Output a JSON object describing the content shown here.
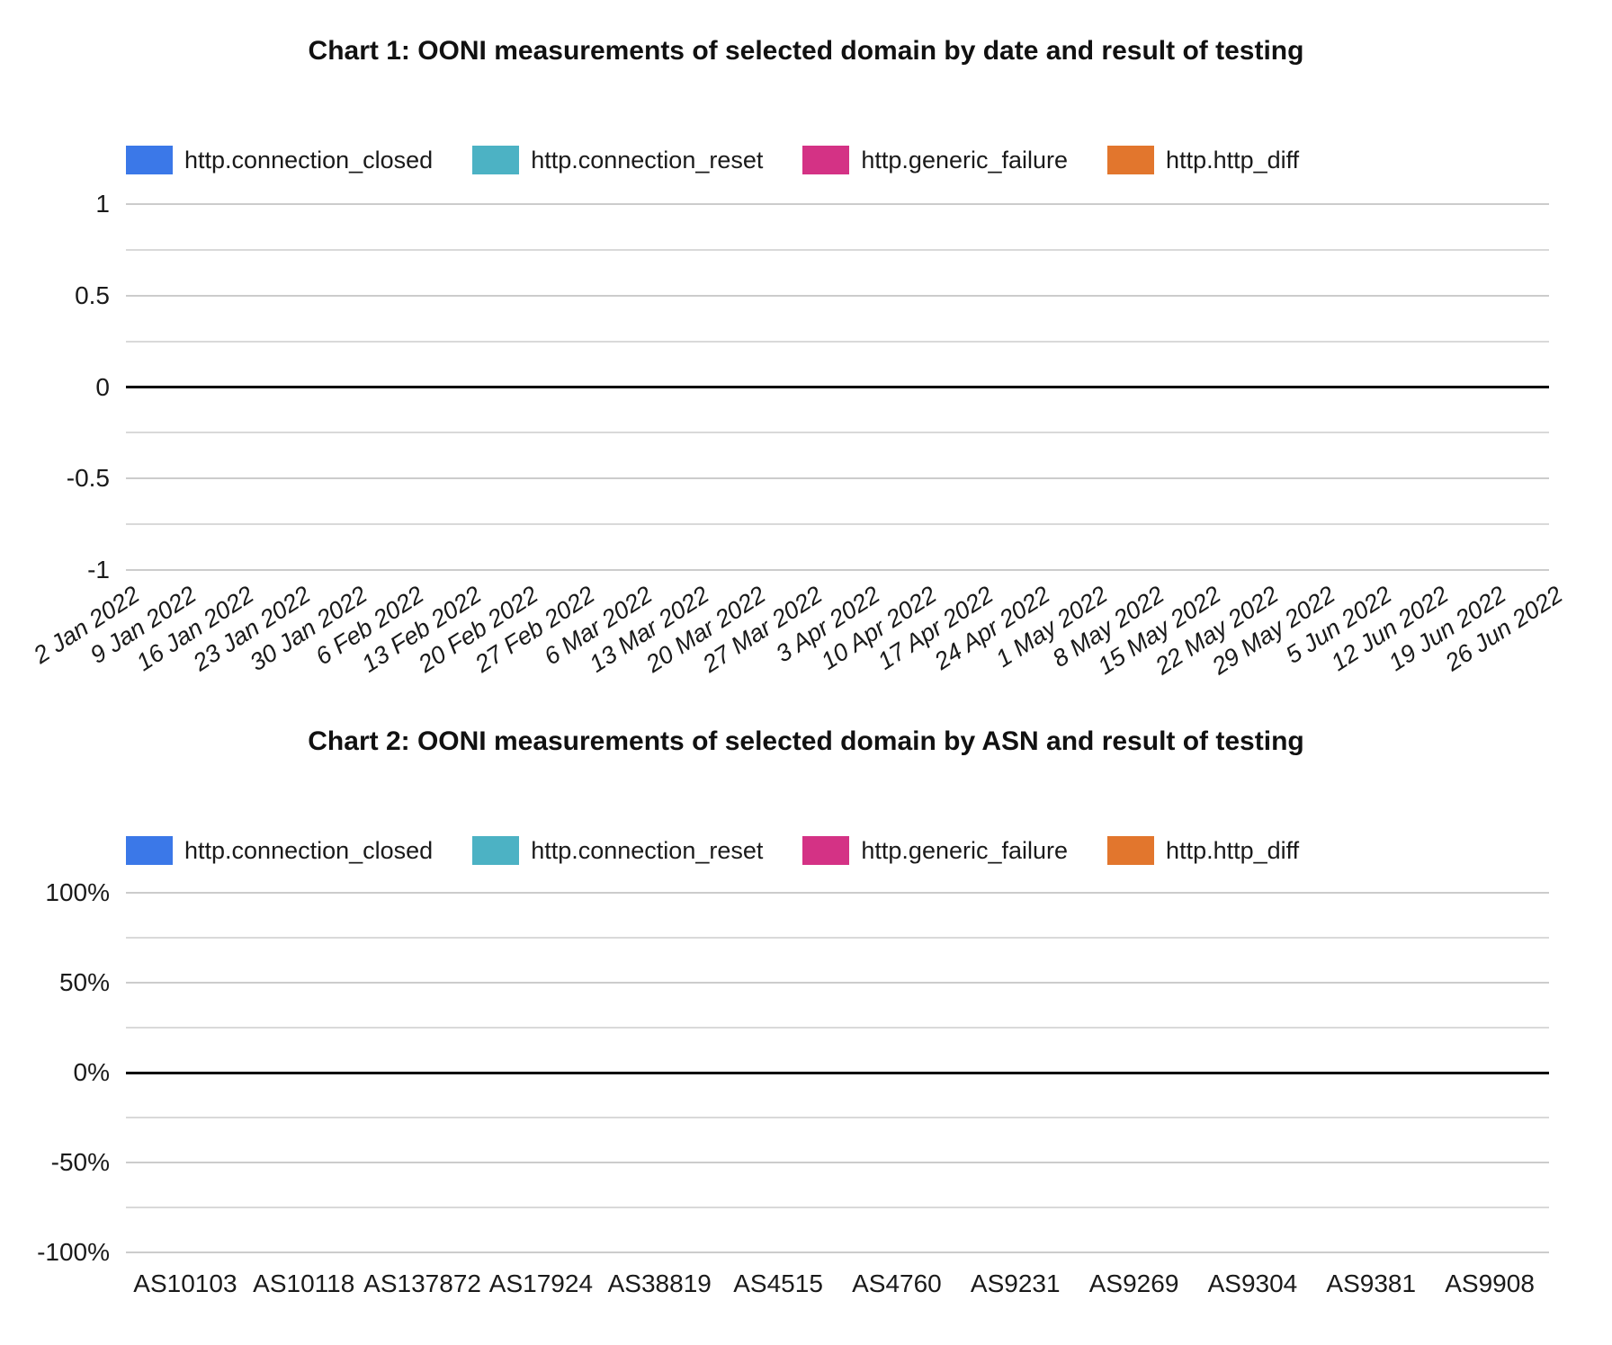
{
  "page": {
    "background": "#ffffff"
  },
  "colors": {
    "series": [
      "#3b78e8",
      "#4cb2c4",
      "#d43285",
      "#e2762d"
    ],
    "gridline": "#cccccc",
    "minor_gridline": "#d9d9d9",
    "zero_line": "#000000",
    "text": "#1a1a1a"
  },
  "charts": [
    {
      "title": "Chart 1: OONI measurements of selected domain by date and result of testing",
      "legend": [
        {
          "label": "http.connection_closed",
          "color": "#3b78e8"
        },
        {
          "label": "http.connection_reset",
          "color": "#4cb2c4"
        },
        {
          "label": "http.generic_failure",
          "color": "#d43285"
        },
        {
          "label": "http.http_diff",
          "color": "#e2762d"
        }
      ],
      "y_ticks": [
        "1",
        "0.5",
        "0",
        "-0.5",
        "-1"
      ],
      "x_labels": [
        "2 Jan 2022",
        "9 Jan 2022",
        "16 Jan 2022",
        "23 Jan 2022",
        "30 Jan 2022",
        "6 Feb 2022",
        "13 Feb 2022",
        "20 Feb 2022",
        "27 Feb 2022",
        "6 Mar 2022",
        "13 Mar 2022",
        "20 Mar 2022",
        "27 Mar 2022",
        "3 Apr 2022",
        "10 Apr 2022",
        "17 Apr 2022",
        "24 Apr 2022",
        "1 May 2022",
        "8 May 2022",
        "15 May 2022",
        "22 May 2022",
        "29 May 2022",
        "5 Jun 2022",
        "12 Jun 2022",
        "19 Jun 2022",
        "26 Jun 2022"
      ]
    },
    {
      "title": "Chart 2: OONI measurements of selected domain by ASN and result of testing",
      "legend": [
        {
          "label": "http.connection_closed",
          "color": "#3b78e8"
        },
        {
          "label": "http.connection_reset",
          "color": "#4cb2c4"
        },
        {
          "label": "http.generic_failure",
          "color": "#d43285"
        },
        {
          "label": "http.http_diff",
          "color": "#e2762d"
        }
      ],
      "y_ticks": [
        "100%",
        "50%",
        "0%",
        "-50%",
        "-100%"
      ],
      "x_labels": [
        "AS10103",
        "AS10118",
        "AS137872",
        "AS17924",
        "AS38819",
        "AS4515",
        "AS4760",
        "AS9231",
        "AS9269",
        "AS9304",
        "AS9381",
        "AS9908"
      ]
    }
  ],
  "chart_data": [
    {
      "type": "bar",
      "stacked": true,
      "title": "Chart 1: OONI measurements of selected domain by date and result of testing",
      "categories": [
        "2 Jan 2022",
        "9 Jan 2022",
        "16 Jan 2022",
        "23 Jan 2022",
        "30 Jan 2022",
        "6 Feb 2022",
        "13 Feb 2022",
        "20 Feb 2022",
        "27 Feb 2022",
        "6 Mar 2022",
        "13 Mar 2022",
        "20 Mar 2022",
        "27 Mar 2022",
        "3 Apr 2022",
        "10 Apr 2022",
        "17 Apr 2022",
        "24 Apr 2022",
        "1 May 2022",
        "8 May 2022",
        "15 May 2022",
        "22 May 2022",
        "29 May 2022",
        "5 Jun 2022",
        "12 Jun 2022",
        "19 Jun 2022",
        "26 Jun 2022"
      ],
      "series": [
        {
          "name": "http.connection_closed",
          "color": "#3b78e8",
          "values": []
        },
        {
          "name": "http.connection_reset",
          "color": "#4cb2c4",
          "values": []
        },
        {
          "name": "http.generic_failure",
          "color": "#d43285",
          "values": []
        },
        {
          "name": "http.http_diff",
          "color": "#e2762d",
          "values": []
        }
      ],
      "xlabel": "",
      "ylabel": "",
      "ylim": [
        -1,
        1
      ],
      "y_tick_values": [
        1,
        0.5,
        0,
        -0.5,
        -1
      ],
      "grid": true,
      "legend_position": "top"
    },
    {
      "type": "bar",
      "stacked": true,
      "title": "Chart 2: OONI measurements of selected domain by ASN and result of testing",
      "categories": [
        "AS10103",
        "AS10118",
        "AS137872",
        "AS17924",
        "AS38819",
        "AS4515",
        "AS4760",
        "AS9231",
        "AS9269",
        "AS9304",
        "AS9381",
        "AS9908"
      ],
      "series": [
        {
          "name": "http.connection_closed",
          "color": "#3b78e8",
          "values": []
        },
        {
          "name": "http.connection_reset",
          "color": "#4cb2c4",
          "values": []
        },
        {
          "name": "http.generic_failure",
          "color": "#d43285",
          "values": []
        },
        {
          "name": "http.http_diff",
          "color": "#e2762d",
          "values": []
        }
      ],
      "xlabel": "",
      "ylabel": "",
      "ylim": [
        -1,
        1
      ],
      "y_tick_labels": [
        "100%",
        "50%",
        "0%",
        "-50%",
        "-100%"
      ],
      "grid": true,
      "legend_position": "top"
    }
  ]
}
